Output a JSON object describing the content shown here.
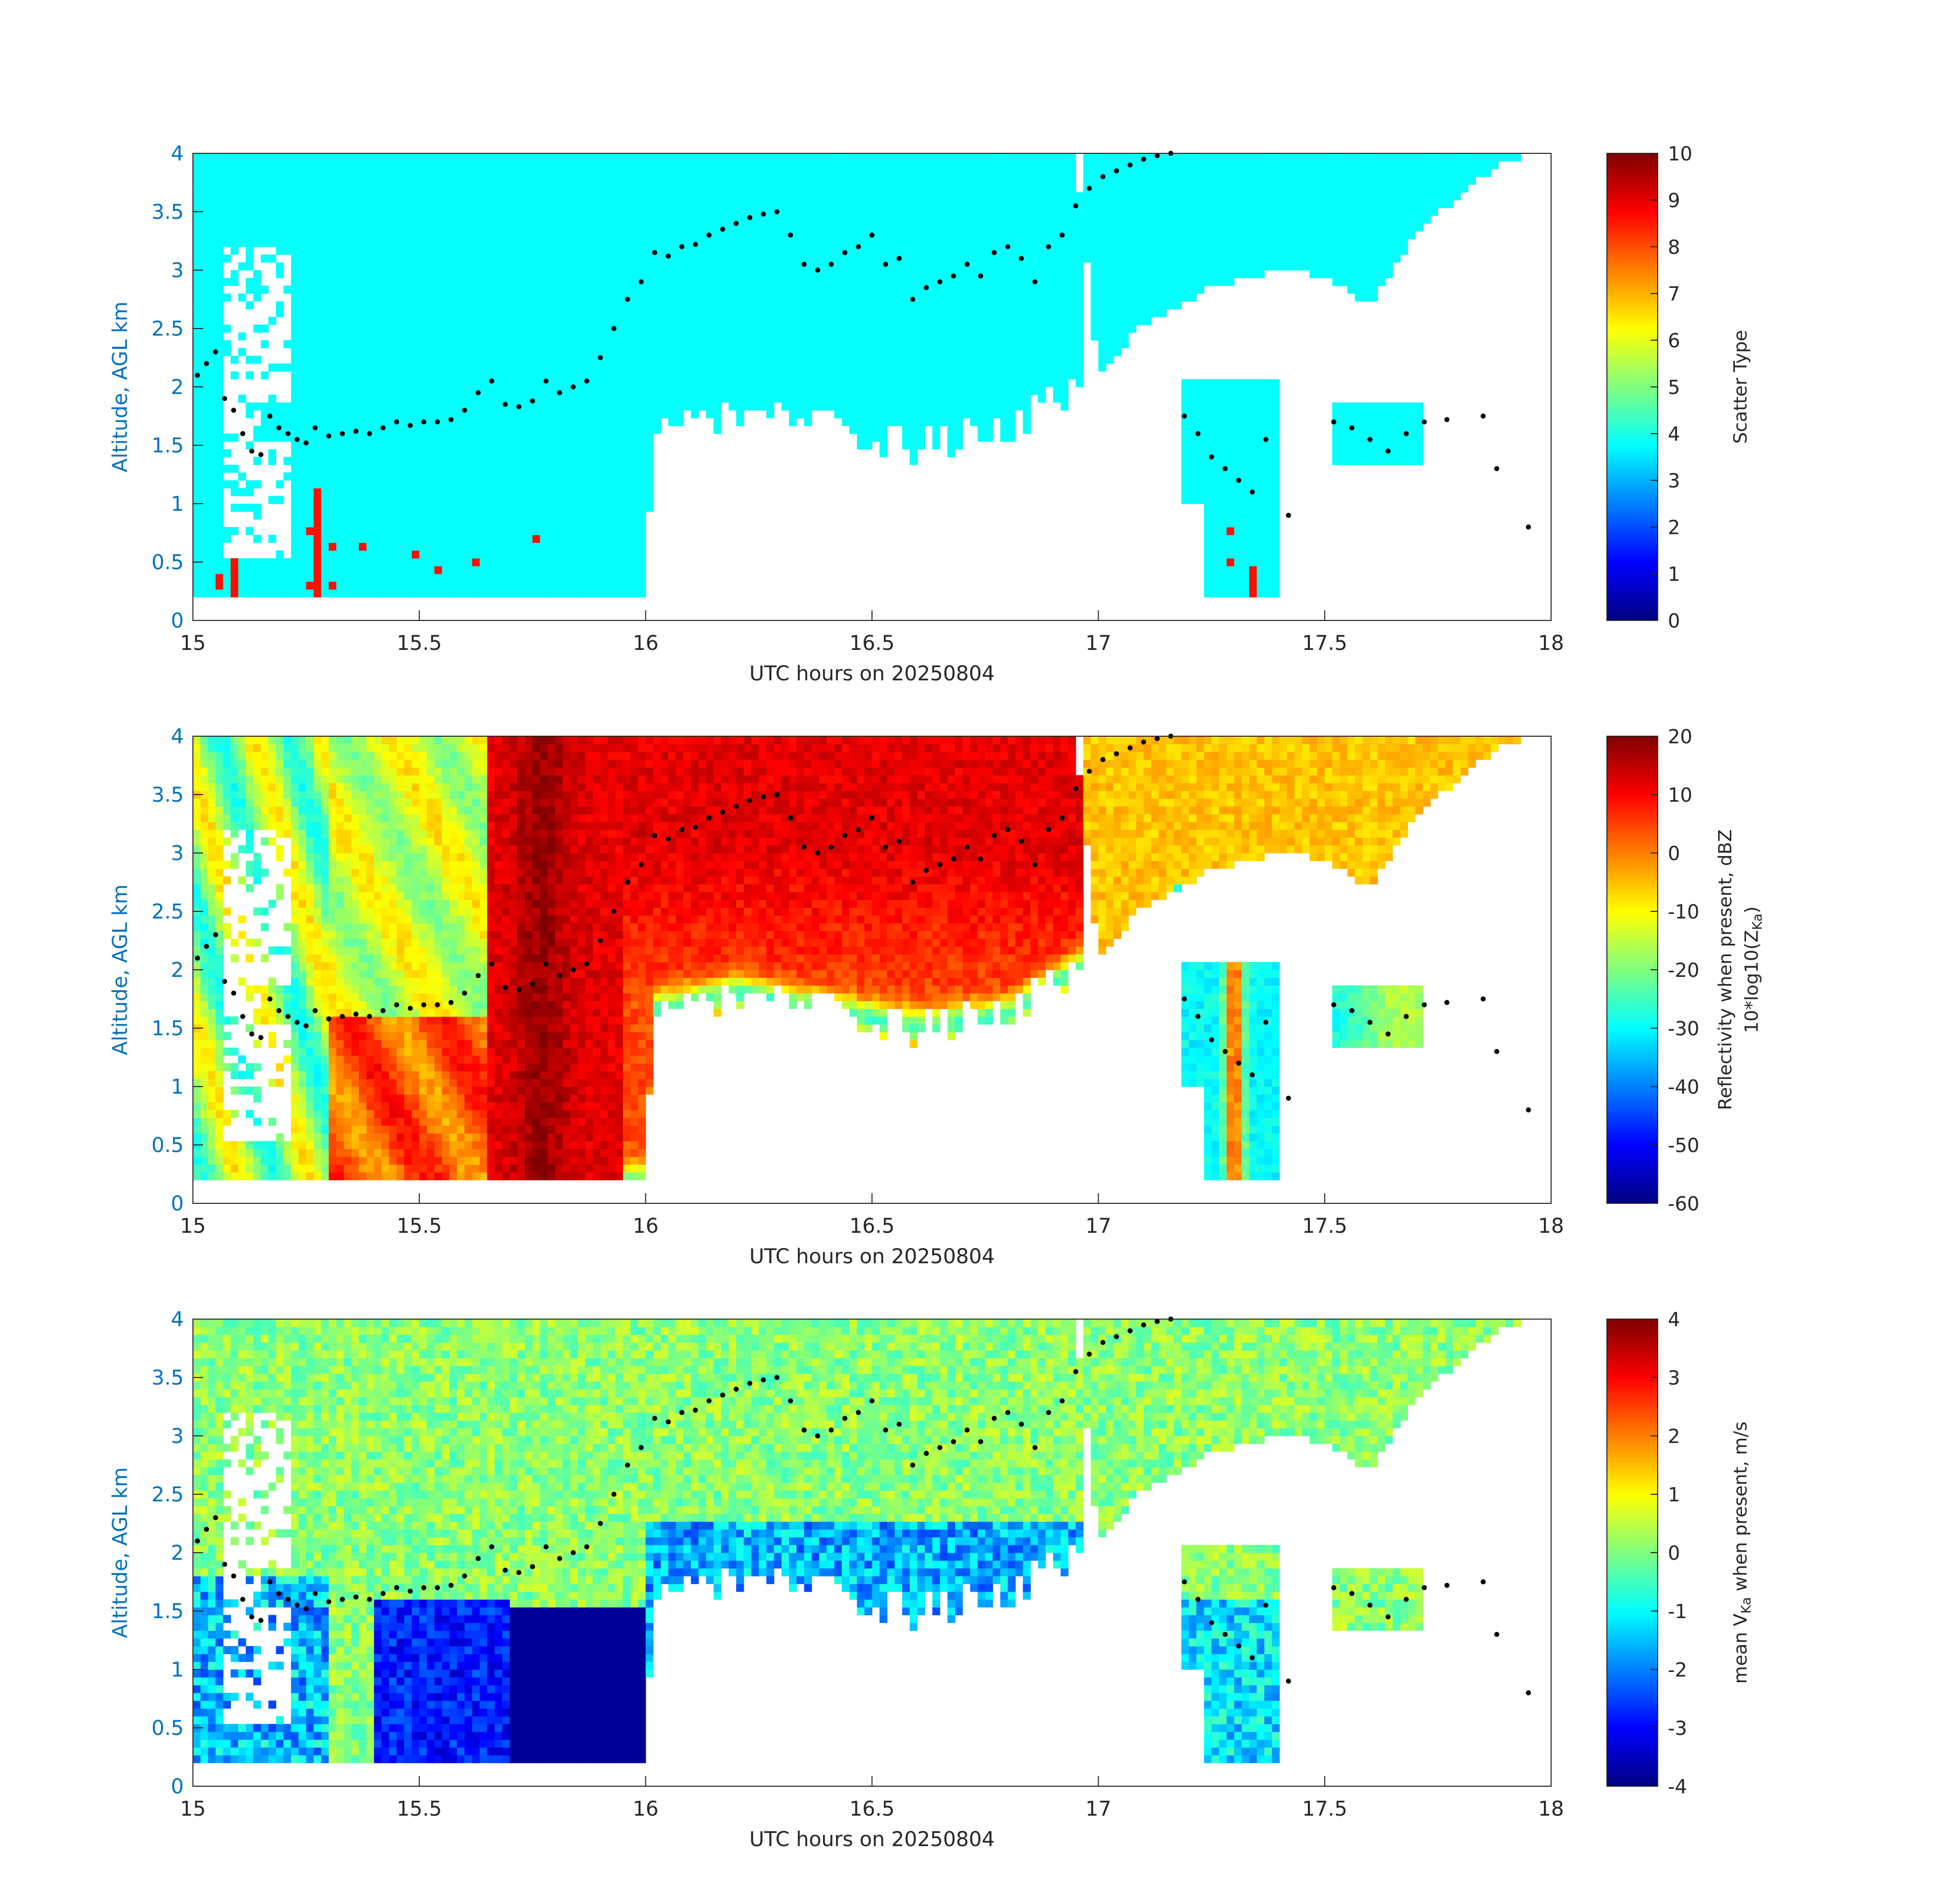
{
  "chart_data": [
    {
      "type": "heatmap",
      "xlabel": "UTC hours on 20250804",
      "ylabel": "Altitude, AGL km",
      "xlim": [
        15,
        18
      ],
      "ylim": [
        0,
        4
      ],
      "xticks": [
        15,
        15.5,
        16,
        16.5,
        17,
        17.5,
        18
      ],
      "xtick_labels": [
        "15",
        "15.5",
        "16",
        "16.5",
        "17",
        "17.5",
        "18"
      ],
      "yticks": [
        0,
        0.5,
        1,
        1.5,
        2,
        2.5,
        3,
        3.5,
        4
      ],
      "ytick_labels": [
        "0",
        "0.5",
        "1",
        "1.5",
        "2",
        "2.5",
        "3",
        "3.5",
        "4"
      ],
      "colorbar": {
        "label": "Scatter Type",
        "range": [
          0,
          10
        ],
        "ticks": [
          0,
          1,
          2,
          3,
          4,
          5,
          6,
          7,
          8,
          9,
          10
        ],
        "tick_labels": [
          "0",
          "1",
          "2",
          "3",
          "4",
          "5",
          "6",
          "7",
          "8",
          "9",
          "10"
        ],
        "colormap": "jet"
      },
      "fields": {
        "dominant_value": 3.8,
        "secondary_value": 8.6
      }
    },
    {
      "type": "heatmap",
      "xlabel": "UTC hours on 20250804",
      "ylabel": "Altitude, AGL km",
      "xlim": [
        15,
        18
      ],
      "ylim": [
        0,
        4
      ],
      "xticks": [
        15,
        15.5,
        16,
        16.5,
        17,
        17.5,
        18
      ],
      "xtick_labels": [
        "15",
        "15.5",
        "16",
        "16.5",
        "17",
        "17.5",
        "18"
      ],
      "yticks": [
        0,
        0.5,
        1,
        1.5,
        2,
        2.5,
        3,
        3.5,
        4
      ],
      "ytick_labels": [
        "0",
        "0.5",
        "1",
        "1.5",
        "2",
        "2.5",
        "3",
        "3.5",
        "4"
      ],
      "colorbar": {
        "label": "Reflectivity when present, dBZ",
        "label2": "10*log10(Z",
        "label2_sub": "Ka",
        "label2_tail": ")",
        "range": [
          -60,
          20
        ],
        "ticks": [
          -60,
          -50,
          -40,
          -30,
          -20,
          -10,
          0,
          10,
          20
        ],
        "tick_labels": [
          "-60",
          "-50",
          "-40",
          "-30",
          "-20",
          "-10",
          "0",
          "10",
          "20"
        ],
        "colormap": "jet"
      }
    },
    {
      "type": "heatmap",
      "xlabel": "UTC hours on 20250804",
      "ylabel": "Altitude, AGL km",
      "xlim": [
        15,
        18
      ],
      "ylim": [
        0,
        4
      ],
      "xticks": [
        15,
        15.5,
        16,
        16.5,
        17,
        17.5,
        18
      ],
      "xtick_labels": [
        "15",
        "15.5",
        "16",
        "16.5",
        "17",
        "17.5",
        "18"
      ],
      "yticks": [
        0,
        0.5,
        1,
        1.5,
        2,
        2.5,
        3,
        3.5,
        4
      ],
      "ytick_labels": [
        "0",
        "0.5",
        "1",
        "1.5",
        "2",
        "2.5",
        "3",
        "3.5",
        "4"
      ],
      "colorbar": {
        "label": "mean V",
        "label_sub": "Ka",
        "label_tail": " when present, m/s",
        "range": [
          -4,
          4
        ],
        "ticks": [
          -4,
          -3,
          -2,
          -1,
          0,
          1,
          2,
          3,
          4
        ],
        "tick_labels": [
          "-4",
          "-3",
          "-2",
          "-1",
          "0",
          "1",
          "2",
          "3",
          "4"
        ],
        "colormap": "jet"
      }
    }
  ],
  "overlay_points": {
    "x": [
      15.01,
      15.03,
      15.05,
      15.07,
      15.09,
      15.11,
      15.13,
      15.15,
      15.17,
      15.19,
      15.21,
      15.23,
      15.25,
      15.27,
      15.3,
      15.33,
      15.36,
      15.39,
      15.42,
      15.45,
      15.48,
      15.51,
      15.54,
      15.57,
      15.6,
      15.63,
      15.66,
      15.69,
      15.72,
      15.75,
      15.78,
      15.81,
      15.84,
      15.87,
      15.9,
      15.93,
      15.96,
      15.99,
      16.02,
      16.05,
      16.08,
      16.11,
      16.14,
      16.17,
      16.2,
      16.23,
      16.26,
      16.29,
      16.32,
      16.35,
      16.38,
      16.41,
      16.44,
      16.47,
      16.5,
      16.53,
      16.56,
      16.59,
      16.62,
      16.65,
      16.68,
      16.71,
      16.74,
      16.77,
      16.8,
      16.83,
      16.86,
      16.89,
      16.92,
      16.95,
      16.98,
      17.01,
      17.04,
      17.07,
      17.1,
      17.13,
      17.16,
      17.19,
      17.22,
      17.25,
      17.28,
      17.31,
      17.34,
      17.37,
      17.42,
      17.52,
      17.56,
      17.6,
      17.64,
      17.68,
      17.72,
      17.77,
      17.85,
      17.88,
      17.95
    ],
    "y": [
      2.1,
      2.2,
      2.3,
      1.9,
      1.8,
      1.6,
      1.45,
      1.42,
      1.75,
      1.65,
      1.6,
      1.55,
      1.52,
      1.65,
      1.58,
      1.6,
      1.62,
      1.6,
      1.65,
      1.7,
      1.67,
      1.7,
      1.7,
      1.72,
      1.8,
      1.95,
      2.05,
      1.85,
      1.83,
      1.88,
      2.05,
      1.95,
      2.0,
      2.05,
      2.25,
      2.5,
      2.75,
      2.9,
      3.15,
      3.12,
      3.2,
      3.22,
      3.3,
      3.35,
      3.4,
      3.45,
      3.48,
      3.5,
      3.3,
      3.05,
      3.0,
      3.05,
      3.15,
      3.2,
      3.3,
      3.05,
      3.1,
      2.75,
      2.85,
      2.9,
      2.95,
      3.05,
      2.95,
      3.15,
      3.2,
      3.1,
      2.9,
      3.2,
      3.3,
      3.55,
      3.7,
      3.8,
      3.85,
      3.9,
      3.95,
      3.98,
      4.0,
      1.75,
      1.6,
      1.4,
      1.3,
      1.2,
      1.1,
      1.55,
      0.9,
      1.7,
      1.65,
      1.55,
      1.45,
      1.6,
      1.7,
      1.72,
      1.75,
      1.3,
      0.8
    ]
  }
}
